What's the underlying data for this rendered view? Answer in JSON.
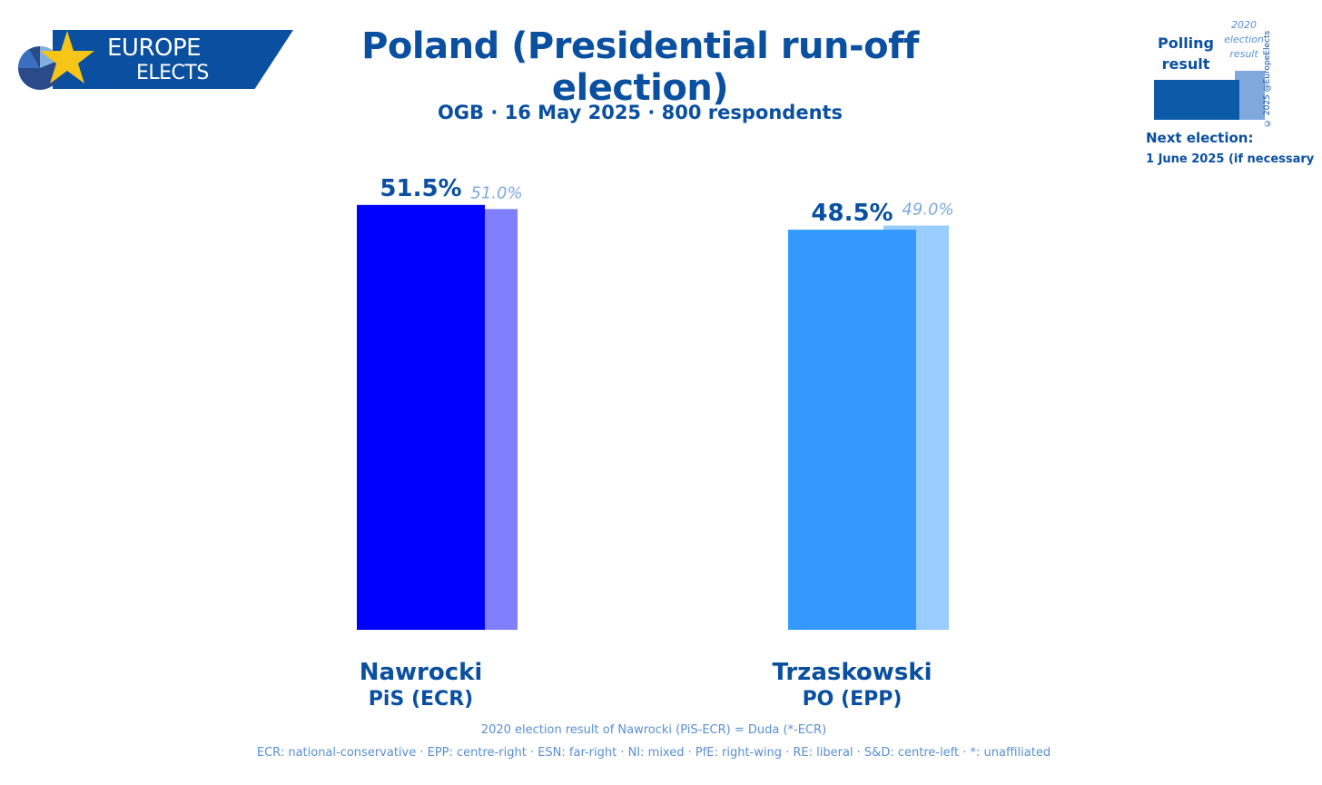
{
  "logo": {
    "line1": "EUROPE",
    "line2": "ELECTS"
  },
  "title": "Poland (Presidential run-off election)",
  "subtitle": "OGB · 16 May 2025 · 800 respondents",
  "legend": {
    "poll_label": "Polling result",
    "prev_label": "2020 election result",
    "copyright": "© 2025 @EuropeElects",
    "next_label": "Next election:",
    "next_date": "1 June 2025 (if necessary"
  },
  "chart_data": {
    "type": "bar",
    "title": "Poland (Presidential run-off election)",
    "ylim": [
      0,
      55
    ],
    "grid": false,
    "categories": [
      "Nawrocki",
      "Trzaskowski"
    ],
    "parties": [
      "PiS (ECR)",
      "PO (EPP)"
    ],
    "series": [
      {
        "name": "Polling result",
        "values": [
          51.5,
          48.5
        ],
        "labels": [
          "51.5%",
          "48.5%"
        ],
        "colors": [
          "#0000ff",
          "#3399ff"
        ]
      },
      {
        "name": "2020 election result",
        "values": [
          51.0,
          49.0
        ],
        "labels": [
          "51.0%",
          "49.0%"
        ],
        "colors": [
          "#8080ff",
          "#99ccff"
        ]
      }
    ]
  },
  "footnote": "2020 election result of Nawrocki (PiS-ECR) = Duda (*-ECR)",
  "groups": "ECR: national-conservative · EPP: centre-right · ESN: far-right · NI: mixed · PfE: right-wing · RE: liberal · S&D: centre-left · *: unaffiliated"
}
